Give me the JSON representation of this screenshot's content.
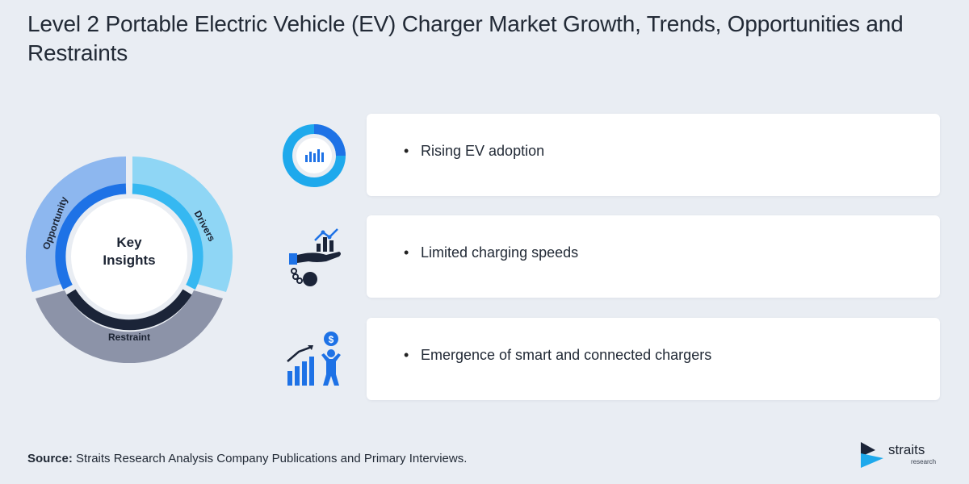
{
  "title": "Level 2 Portable Electric Vehicle (EV) Charger Market Growth, Trends, Opportunities and Restraints",
  "diagram": {
    "center_label_line1": "Key",
    "center_label_line2": "Insights",
    "segments": {
      "drivers": "Drivers",
      "opportunity": "Opportunity",
      "restraint": "Restraint"
    },
    "colors": {
      "drivers": "#8fd6f5",
      "opportunity": "#8db7ef",
      "restraint": "#8c93a8",
      "inner_blue": "#1e72e6",
      "inner_light": "#36b8f1",
      "inner_dark": "#1b2438"
    }
  },
  "insights": [
    {
      "icon": "donut-chart-icon",
      "text": "Rising EV adoption"
    },
    {
      "icon": "hand-chart-ball-chain-icon",
      "text": "Limited charging speeds"
    },
    {
      "icon": "growth-person-dollar-icon",
      "text": "Emergence of smart and connected chargers"
    }
  ],
  "bullet": "•",
  "source": {
    "label": "Source:",
    "text": " Straits Research Analysis Company Publications and Primary Interviews."
  },
  "logo": {
    "brand": "straits",
    "sub": "research"
  }
}
